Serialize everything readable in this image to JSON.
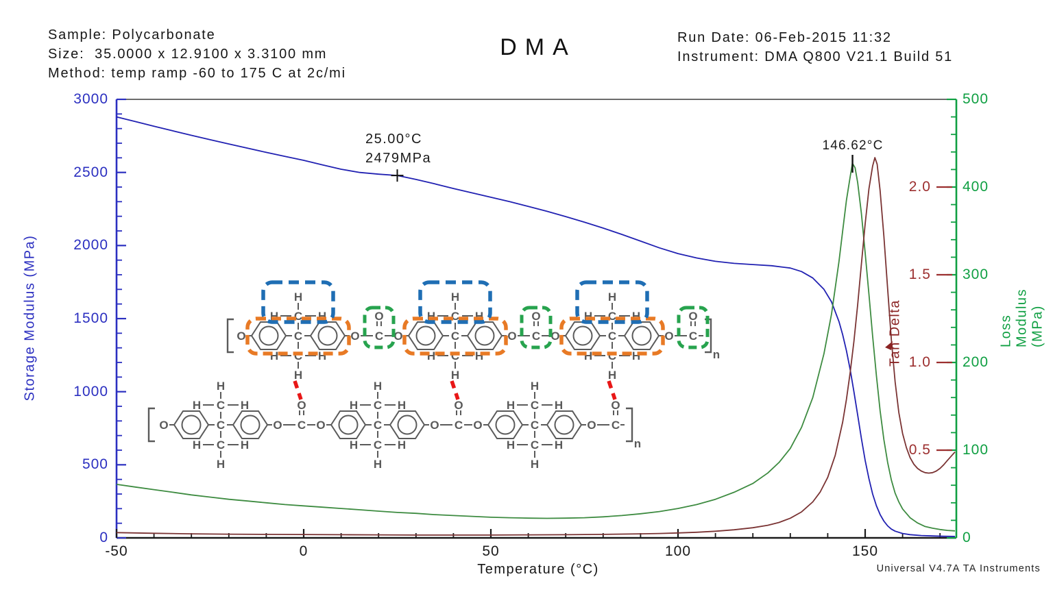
{
  "header": {
    "sample": "Sample: Polycarbonate",
    "size": "Size:  35.0000 x 12.9100 x 3.3100 mm",
    "method": "Method: temp ramp -60 to 175 C at 2c/mi",
    "title": "DMA",
    "run_date": "Run Date: 06-Feb-2015 11:32",
    "instrument": "Instrument: DMA Q800 V21.1 Build 51"
  },
  "footer": {
    "credit": "Universal V4.7A TA Instruments"
  },
  "chart_data": {
    "type": "line",
    "title": "DMA",
    "grid": false,
    "legend": "curve-adjacent-labels",
    "axes": {
      "x": {
        "label": "Temperature (°C)",
        "min": -50,
        "max": 175,
        "ticks": [
          -50,
          0,
          50,
          100,
          150
        ],
        "minor_step": 10,
        "color": "#1a1a1a"
      },
      "left": {
        "label": "Storage Modulus (MPa)",
        "min": 0,
        "max": 3000,
        "ticks": [
          0,
          500,
          1000,
          1500,
          2000,
          2500,
          3000
        ],
        "minor_step": 100,
        "color": "#2b2fc0"
      },
      "right": {
        "label": "Loss Modulus (MPa)",
        "min": 0,
        "max": 500,
        "ticks": [
          0,
          100,
          200,
          300,
          400,
          500
        ],
        "minor_step": 20,
        "color": "#0f9f42"
      },
      "right2": {
        "label": "Tan Delta",
        "min": 0,
        "max": 2.5,
        "ticks": [
          "0.5",
          "1.0",
          "1.5",
          "2.0"
        ],
        "tick_values": [
          0.5,
          1.0,
          1.5,
          2.0
        ],
        "color": "#9c2f2f"
      }
    },
    "series": [
      {
        "name": "storage_modulus",
        "axis": "left",
        "color": "#2121b2",
        "points": [
          [
            -50,
            2880
          ],
          [
            -45,
            2848
          ],
          [
            -40,
            2816
          ],
          [
            -35,
            2785
          ],
          [
            -30,
            2754
          ],
          [
            -25,
            2724
          ],
          [
            -20,
            2695
          ],
          [
            -15,
            2666
          ],
          [
            -10,
            2637
          ],
          [
            -5,
            2610
          ],
          [
            0,
            2583
          ],
          [
            5,
            2552
          ],
          [
            10,
            2522
          ],
          [
            15,
            2500
          ],
          [
            20,
            2488
          ],
          [
            25,
            2479
          ],
          [
            30,
            2452
          ],
          [
            35,
            2422
          ],
          [
            40,
            2390
          ],
          [
            45,
            2360
          ],
          [
            50,
            2330
          ],
          [
            55,
            2300
          ],
          [
            60,
            2268
          ],
          [
            65,
            2234
          ],
          [
            70,
            2198
          ],
          [
            75,
            2160
          ],
          [
            80,
            2119
          ],
          [
            85,
            2076
          ],
          [
            90,
            2030
          ],
          [
            95,
            1984
          ],
          [
            100,
            1945
          ],
          [
            105,
            1915
          ],
          [
            110,
            1892
          ],
          [
            115,
            1878
          ],
          [
            120,
            1870
          ],
          [
            125,
            1862
          ],
          [
            130,
            1846
          ],
          [
            133,
            1822
          ],
          [
            136,
            1778
          ],
          [
            139,
            1700
          ],
          [
            141,
            1615
          ],
          [
            143,
            1480
          ],
          [
            144,
            1390
          ],
          [
            145,
            1280
          ],
          [
            146,
            1150
          ],
          [
            147,
            1000
          ],
          [
            148,
            840
          ],
          [
            149,
            680
          ],
          [
            150,
            530
          ],
          [
            151,
            405
          ],
          [
            152,
            300
          ],
          [
            153,
            220
          ],
          [
            154,
            160
          ],
          [
            155,
            115
          ],
          [
            156,
            82
          ],
          [
            157,
            60
          ],
          [
            158,
            46
          ],
          [
            160,
            30
          ],
          [
            162,
            22
          ],
          [
            165,
            16
          ],
          [
            168,
            13
          ],
          [
            171,
            11
          ],
          [
            174,
            10
          ]
        ]
      },
      {
        "name": "loss_modulus",
        "axis": "right",
        "color": "#3d8b40",
        "points": [
          [
            -50,
            61
          ],
          [
            -45,
            58
          ],
          [
            -40,
            55
          ],
          [
            -35,
            52
          ],
          [
            -30,
            49
          ],
          [
            -25,
            46.5
          ],
          [
            -20,
            44
          ],
          [
            -15,
            42
          ],
          [
            -10,
            40
          ],
          [
            -5,
            38
          ],
          [
            0,
            36.5
          ],
          [
            5,
            35
          ],
          [
            10,
            33.5
          ],
          [
            15,
            32
          ],
          [
            20,
            30.5
          ],
          [
            25,
            29
          ],
          [
            30,
            28
          ],
          [
            35,
            26.5
          ],
          [
            40,
            25.5
          ],
          [
            45,
            24.5
          ],
          [
            50,
            23.5
          ],
          [
            55,
            23
          ],
          [
            60,
            22.5
          ],
          [
            65,
            22.3
          ],
          [
            70,
            22.5
          ],
          [
            75,
            23
          ],
          [
            80,
            24
          ],
          [
            85,
            25.5
          ],
          [
            90,
            27.5
          ],
          [
            95,
            30
          ],
          [
            100,
            33.5
          ],
          [
            105,
            38
          ],
          [
            110,
            44
          ],
          [
            115,
            52
          ],
          [
            120,
            62
          ],
          [
            124,
            74
          ],
          [
            127,
            86
          ],
          [
            130,
            102
          ],
          [
            133,
            126
          ],
          [
            136,
            160
          ],
          [
            139,
            210
          ],
          [
            141,
            255
          ],
          [
            143,
            315
          ],
          [
            144,
            350
          ],
          [
            145,
            385
          ],
          [
            146,
            412
          ],
          [
            146.6,
            427
          ],
          [
            147.3,
            422
          ],
          [
            148,
            405
          ],
          [
            149,
            370
          ],
          [
            150,
            325
          ],
          [
            151,
            278
          ],
          [
            152,
            230
          ],
          [
            153,
            185
          ],
          [
            154,
            145
          ],
          [
            155,
            112
          ],
          [
            156,
            86
          ],
          [
            157,
            66
          ],
          [
            158,
            51
          ],
          [
            159,
            41
          ],
          [
            160,
            33
          ],
          [
            162,
            23
          ],
          [
            164,
            17
          ],
          [
            166,
            13
          ],
          [
            168,
            11
          ],
          [
            170,
            9.5
          ],
          [
            172,
            8.5
          ],
          [
            174,
            8
          ]
        ]
      },
      {
        "name": "tan_delta",
        "axis": "right2",
        "color": "#7a3333",
        "points": [
          [
            -50,
            0.03
          ],
          [
            -40,
            0.026
          ],
          [
            -30,
            0.023
          ],
          [
            -20,
            0.021
          ],
          [
            -10,
            0.02
          ],
          [
            0,
            0.019
          ],
          [
            10,
            0.018
          ],
          [
            20,
            0.017
          ],
          [
            30,
            0.016
          ],
          [
            40,
            0.016
          ],
          [
            50,
            0.016
          ],
          [
            60,
            0.017
          ],
          [
            70,
            0.018
          ],
          [
            80,
            0.02
          ],
          [
            90,
            0.023
          ],
          [
            95,
            0.025
          ],
          [
            100,
            0.028
          ],
          [
            105,
            0.032
          ],
          [
            110,
            0.038
          ],
          [
            115,
            0.046
          ],
          [
            120,
            0.058
          ],
          [
            124,
            0.072
          ],
          [
            127,
            0.088
          ],
          [
            130,
            0.112
          ],
          [
            133,
            0.148
          ],
          [
            136,
            0.205
          ],
          [
            138,
            0.262
          ],
          [
            140,
            0.345
          ],
          [
            142,
            0.47
          ],
          [
            144,
            0.66
          ],
          [
            145,
            0.79
          ],
          [
            146,
            0.945
          ],
          [
            147,
            1.12
          ],
          [
            148,
            1.33
          ],
          [
            149,
            1.56
          ],
          [
            150,
            1.79
          ],
          [
            151,
            1.99
          ],
          [
            152,
            2.12
          ],
          [
            152.6,
            2.168
          ],
          [
            153.2,
            2.13
          ],
          [
            154,
            1.98
          ],
          [
            155,
            1.72
          ],
          [
            156,
            1.42
          ],
          [
            157,
            1.13
          ],
          [
            158,
            0.89
          ],
          [
            159,
            0.715
          ],
          [
            160,
            0.595
          ],
          [
            161,
            0.515
          ],
          [
            162,
            0.458
          ],
          [
            163,
            0.42
          ],
          [
            164,
            0.396
          ],
          [
            165,
            0.381
          ],
          [
            166,
            0.372
          ],
          [
            167,
            0.369
          ],
          [
            168,
            0.372
          ],
          [
            169,
            0.381
          ],
          [
            170,
            0.396
          ],
          [
            171,
            0.417
          ],
          [
            172,
            0.442
          ],
          [
            173,
            0.466
          ],
          [
            174,
            0.49
          ]
        ]
      }
    ],
    "annotations": [
      {
        "type": "point",
        "lines": [
          "25.00°C",
          "2479MPa"
        ],
        "x": 25.0,
        "value": 2479,
        "axis": "left",
        "marker": "cross"
      },
      {
        "type": "peak",
        "text": "146.62°C",
        "x": 146.62,
        "series": "loss_modulus",
        "marker": "tick"
      }
    ]
  },
  "structure": {
    "description": "polycarbonate repeat units with highlighted methyl, bisphenol-A and carbonate groups plus inter-chain interaction links",
    "atom_symbols": {
      "hydrogen": "H",
      "carbon": "C",
      "oxygen": "O",
      "repeat_subscript": "n"
    },
    "highlight_colors": {
      "methyl_box": "#1f6eb4",
      "bisphenol_box": "#e87a25",
      "carbonate_box": "#27a34e",
      "interaction_link": "#e81717",
      "bond": "#5a5a5a"
    }
  }
}
